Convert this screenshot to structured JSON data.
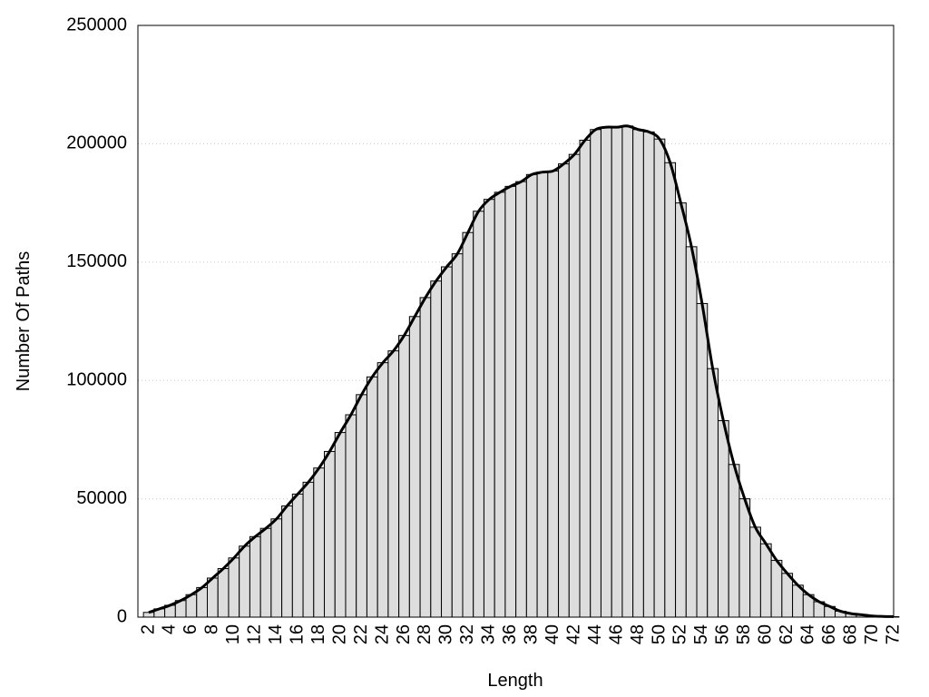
{
  "chart_data": {
    "type": "bar",
    "xlabel": "Length",
    "ylabel": "Number Of Paths",
    "categories": [
      2,
      null,
      4,
      null,
      6,
      null,
      8,
      null,
      10,
      null,
      12,
      null,
      14,
      null,
      16,
      null,
      18,
      null,
      20,
      null,
      22,
      null,
      24,
      null,
      26,
      null,
      28,
      null,
      30,
      null,
      32,
      null,
      34,
      null,
      36,
      null,
      38,
      null,
      40,
      null,
      42,
      null,
      44,
      null,
      46,
      null,
      48,
      null,
      50,
      null,
      52,
      null,
      54,
      null,
      56,
      null,
      58,
      null,
      60,
      null,
      62,
      null,
      64,
      null,
      66,
      null,
      68,
      null,
      70,
      null,
      72
    ],
    "values": [
      2000,
      3500,
      5000,
      7000,
      9500,
      12500,
      16500,
      20500,
      25000,
      30000,
      34000,
      37500,
      41500,
      47000,
      52000,
      57000,
      63000,
      70000,
      78000,
      85500,
      94000,
      101500,
      107500,
      112500,
      119000,
      127000,
      135000,
      142000,
      148000,
      153500,
      162500,
      171500,
      176500,
      179500,
      182000,
      184000,
      187000,
      188000,
      188500,
      191500,
      195500,
      201500,
      206000,
      207000,
      207000,
      207500,
      206000,
      205000,
      202000,
      192000,
      175000,
      156500,
      132500,
      105000,
      83000,
      64500,
      50000,
      38000,
      31000,
      24000,
      18500,
      13500,
      9500,
      6500,
      4500,
      2500,
      1500,
      1000,
      500,
      300,
      200
    ],
    "color": "#dddddd",
    "line_color": "#000000",
    "ylim": [
      0,
      250000
    ],
    "yticks": [
      0,
      50000,
      100000,
      150000,
      200000,
      250000
    ],
    "grid": true
  }
}
